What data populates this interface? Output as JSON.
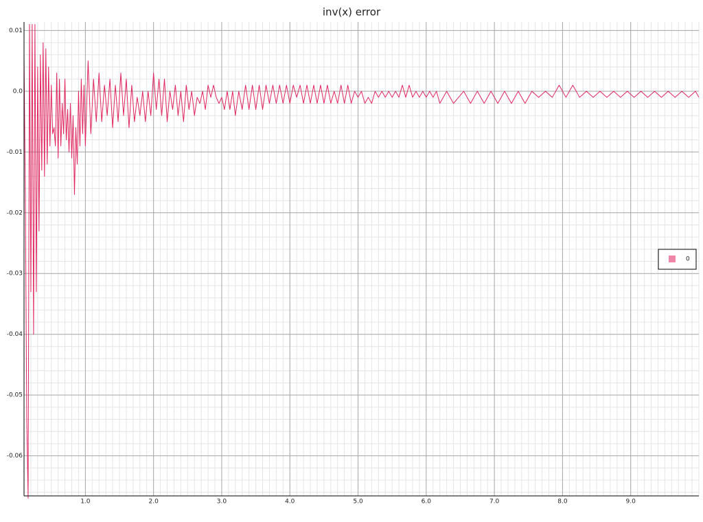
{
  "chart_data": {
    "type": "line",
    "title": "inv(x) error",
    "x": [
      0.1,
      0.12,
      0.14,
      0.16,
      0.18,
      0.2,
      0.22,
      0.24,
      0.26,
      0.28,
      0.3,
      0.32,
      0.34,
      0.36,
      0.38,
      0.4,
      0.42,
      0.44,
      0.46,
      0.48,
      0.5,
      0.52,
      0.54,
      0.56,
      0.58,
      0.6,
      0.62,
      0.64,
      0.66,
      0.68,
      0.7,
      0.72,
      0.74,
      0.76,
      0.78,
      0.8,
      0.82,
      0.84,
      0.86,
      0.88,
      0.9,
      0.92,
      0.94,
      0.96,
      0.98,
      1.0,
      1.04,
      1.08,
      1.12,
      1.16,
      1.2,
      1.24,
      1.28,
      1.32,
      1.36,
      1.4,
      1.44,
      1.48,
      1.52,
      1.56,
      1.6,
      1.64,
      1.68,
      1.72,
      1.76,
      1.8,
      1.84,
      1.88,
      1.92,
      1.96,
      2.0,
      2.04,
      2.08,
      2.12,
      2.16,
      2.2,
      2.24,
      2.28,
      2.32,
      2.36,
      2.4,
      2.44,
      2.48,
      2.52,
      2.56,
      2.6,
      2.64,
      2.68,
      2.72,
      2.76,
      2.8,
      2.84,
      2.88,
      2.92,
      2.96,
      3.0,
      3.04,
      3.08,
      3.12,
      3.16,
      3.2,
      3.25,
      3.3,
      3.35,
      3.4,
      3.45,
      3.5,
      3.55,
      3.6,
      3.65,
      3.7,
      3.75,
      3.8,
      3.85,
      3.9,
      3.95,
      4.0,
      4.05,
      4.1,
      4.15,
      4.2,
      4.25,
      4.3,
      4.35,
      4.4,
      4.45,
      4.5,
      4.55,
      4.6,
      4.65,
      4.7,
      4.75,
      4.8,
      4.85,
      4.9,
      4.95,
      5.0,
      5.05,
      5.1,
      5.15,
      5.2,
      5.25,
      5.3,
      5.35,
      5.4,
      5.45,
      5.5,
      5.55,
      5.6,
      5.65,
      5.7,
      5.75,
      5.8,
      5.85,
      5.9,
      5.95,
      6.0,
      6.05,
      6.1,
      6.15,
      6.2,
      6.3,
      6.4,
      6.55,
      6.65,
      6.75,
      6.85,
      6.95,
      7.05,
      7.15,
      7.25,
      7.35,
      7.45,
      7.55,
      7.65,
      7.75,
      7.85,
      7.95,
      8.05,
      8.15,
      8.25,
      8.35,
      8.45,
      8.55,
      8.65,
      8.75,
      8.85,
      8.95,
      9.05,
      9.15,
      9.25,
      9.35,
      9.45,
      9.55,
      9.65,
      9.75,
      9.85,
      9.95,
      10.0
    ],
    "series": [
      {
        "name": "0",
        "color": "#e0245e",
        "values": [
          0.006,
          -0.018,
          -0.054,
          -0.067,
          0.011,
          -0.033,
          0.011,
          -0.04,
          0.011,
          -0.033,
          0.004,
          -0.023,
          0.006,
          -0.013,
          0.008,
          -0.014,
          0.007,
          -0.012,
          0.004,
          -0.009,
          0.001,
          -0.007,
          -0.006,
          -0.009,
          0.003,
          -0.011,
          0.002,
          -0.009,
          -0.002,
          -0.007,
          0.002,
          -0.008,
          -0.003,
          -0.01,
          -0.002,
          -0.011,
          -0.004,
          -0.017,
          -0.006,
          -0.012,
          0.0,
          -0.009,
          0.002,
          -0.007,
          0.001,
          -0.009,
          0.005,
          -0.007,
          0.002,
          -0.005,
          0.003,
          -0.005,
          0.001,
          -0.004,
          0.002,
          -0.006,
          0.001,
          -0.005,
          0.003,
          -0.004,
          0.002,
          -0.006,
          0.001,
          -0.005,
          -0.001,
          -0.004,
          0.0,
          -0.005,
          0.0,
          -0.004,
          0.003,
          -0.003,
          0.002,
          -0.004,
          0.002,
          -0.005,
          0.0,
          -0.003,
          0.001,
          -0.004,
          0.0,
          -0.005,
          0.001,
          -0.003,
          0.0,
          -0.004,
          -0.001,
          -0.002,
          0.0,
          -0.003,
          0.001,
          -0.001,
          0.001,
          -0.001,
          -0.002,
          -0.001,
          -0.003,
          0.0,
          -0.003,
          0.0,
          -0.004,
          0.0,
          -0.003,
          0.001,
          -0.003,
          0.001,
          -0.003,
          0.001,
          -0.003,
          0.001,
          -0.002,
          0.001,
          -0.002,
          0.001,
          -0.002,
          0.001,
          -0.002,
          0.001,
          -0.001,
          0.001,
          -0.002,
          0.001,
          -0.002,
          0.001,
          -0.002,
          0.001,
          -0.002,
          0.001,
          -0.002,
          0.0,
          -0.002,
          0.001,
          -0.002,
          0.001,
          -0.002,
          0.0,
          -0.001,
          0.0,
          -0.002,
          -0.001,
          -0.002,
          0.0,
          -0.001,
          0.0,
          -0.001,
          0.0,
          -0.001,
          0.0,
          -0.001,
          0.001,
          -0.001,
          0.001,
          -0.001,
          0.0,
          -0.001,
          0.0,
          -0.001,
          0.0,
          -0.001,
          0.0,
          -0.002,
          0.0,
          -0.002,
          0.0,
          -0.002,
          0.0,
          -0.002,
          0.0,
          -0.002,
          0.0,
          -0.002,
          0.0,
          -0.002,
          0.0,
          -0.001,
          0.0,
          -0.001,
          0.001,
          -0.001,
          0.001,
          -0.001,
          0.0,
          -0.001,
          0.0,
          -0.001,
          0.0,
          -0.001,
          0.0,
          -0.001,
          0.0,
          -0.001,
          0.0,
          -0.001,
          0.0,
          -0.001,
          0.0,
          -0.001,
          0.0,
          -0.001
        ]
      }
    ],
    "xlim": [
      0.1,
      10.0
    ],
    "ylim": [
      -0.0666,
      0.0114
    ],
    "xticks": [
      {
        "value": 1,
        "label": "1.0"
      },
      {
        "value": 2,
        "label": "2.0"
      },
      {
        "value": 3,
        "label": "3.0"
      },
      {
        "value": 4,
        "label": "4.0"
      },
      {
        "value": 5,
        "label": "5.0"
      },
      {
        "value": 6,
        "label": "6.0"
      },
      {
        "value": 7,
        "label": "7.0"
      },
      {
        "value": 8,
        "label": "8.0"
      },
      {
        "value": 9,
        "label": "9.0"
      }
    ],
    "yticks": [
      0.01,
      {
        "value": 0,
        "label": "0.0"
      },
      -0.01,
      -0.02,
      -0.03,
      -0.04,
      -0.05,
      -0.06
    ],
    "grid": true,
    "minor_grid": true,
    "legend": "right"
  }
}
